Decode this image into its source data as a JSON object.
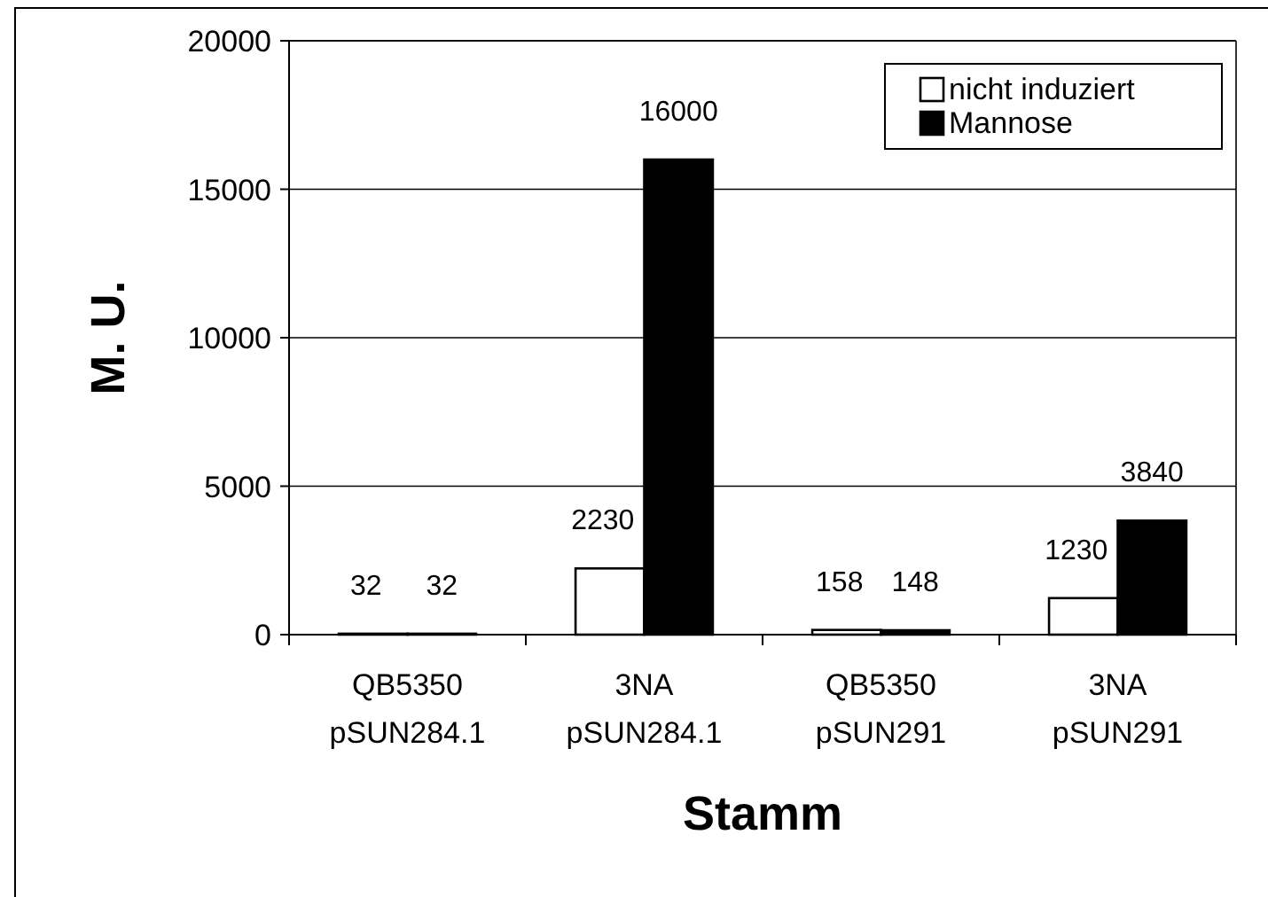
{
  "chart_data": {
    "type": "bar",
    "xlabel": "Stamm",
    "ylabel": "M. U.",
    "categories": [
      "QB5350\npSUN284.1",
      "3NA\npSUN284.1",
      "QB5350\npSUN291",
      "3NA\npSUN291"
    ],
    "series": [
      {
        "name": "nicht induziert",
        "color": "#ffffff",
        "values": [
          32,
          2230,
          158,
          1230
        ]
      },
      {
        "name": "Mannose",
        "color": "#000000",
        "values": [
          32,
          16000,
          148,
          3840
        ]
      }
    ],
    "ylim": [
      0,
      20000
    ],
    "yticks": [
      0,
      5000,
      10000,
      15000,
      20000
    ],
    "grid": "y",
    "legend": "top right",
    "data_labels": true
  }
}
